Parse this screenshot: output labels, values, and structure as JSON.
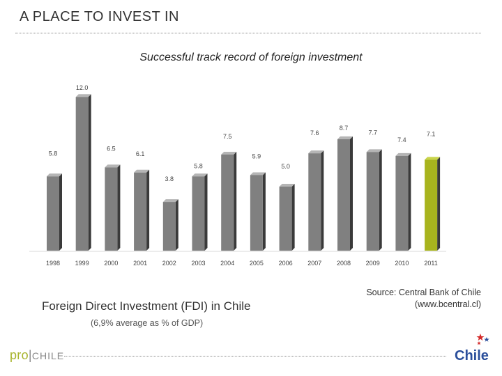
{
  "header": {
    "title": "A PLACE TO INVEST IN"
  },
  "chart_title": "Successful track record of foreign investment",
  "caption": "Foreign Direct Investment (FDI) in Chile",
  "subcaption": "(6,9% average as % of GDP)",
  "source": {
    "line1": "Source: Central Bank of Chile",
    "line2": "(www.bcentral.cl)"
  },
  "logos": {
    "prochile_pro": "pro",
    "prochile_chile": "CHILE",
    "chile_brand": "Chile"
  },
  "colors": {
    "bar": "#808080",
    "bar_highlight": "#a8b41e",
    "bar_shadow": "#3a3a3a"
  },
  "chart_data": {
    "type": "bar",
    "categories": [
      "1998",
      "1999",
      "2000",
      "2001",
      "2002",
      "2003",
      "2004",
      "2005",
      "2006",
      "2007",
      "2008",
      "2009",
      "2010",
      "2011"
    ],
    "values": [
      5.8,
      12.0,
      6.5,
      6.1,
      3.8,
      5.8,
      7.5,
      5.9,
      5.0,
      7.6,
      8.7,
      7.7,
      7.4,
      7.1
    ],
    "labels": [
      "5.8",
      "12.0",
      "6.5",
      "6.1",
      "3.8",
      "5.8",
      "7.5",
      "5.9",
      "5.0",
      "7.6",
      "8.7",
      "7.7",
      "7.4",
      "7.1"
    ],
    "highlight_index": 13,
    "ylim": [
      0,
      12.5
    ],
    "grid": false,
    "legend": "none"
  }
}
